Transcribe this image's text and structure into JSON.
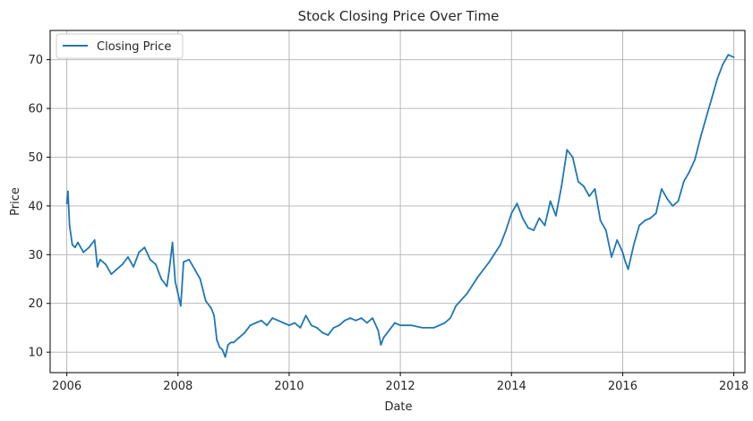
{
  "chart_data": {
    "type": "line",
    "title": "Stock Closing Price Over Time",
    "xlabel": "Date",
    "ylabel": "Price",
    "xlim": [
      2005.7,
      2018.2
    ],
    "ylim": [
      5.8,
      76.0
    ],
    "grid": true,
    "legend_position": "top-left",
    "x_ticks": [
      2006,
      2008,
      2010,
      2012,
      2014,
      2016,
      2018
    ],
    "x_tick_labels": [
      "2006",
      "2008",
      "2010",
      "2012",
      "2014",
      "2016",
      "2018"
    ],
    "y_ticks": [
      10,
      20,
      30,
      40,
      50,
      60,
      70
    ],
    "y_tick_labels": [
      "10",
      "20",
      "30",
      "40",
      "50",
      "60",
      "70"
    ],
    "series": [
      {
        "name": "Closing Price",
        "color": "#1f77b4",
        "x": [
          2006.0,
          2006.02,
          2006.05,
          2006.08,
          2006.1,
          2006.15,
          2006.2,
          2006.3,
          2006.4,
          2006.5,
          2006.55,
          2006.6,
          2006.7,
          2006.8,
          2006.9,
          2007.0,
          2007.1,
          2007.2,
          2007.3,
          2007.4,
          2007.5,
          2007.6,
          2007.7,
          2007.8,
          2007.85,
          2007.9,
          2007.95,
          2008.0,
          2008.05,
          2008.1,
          2008.2,
          2008.3,
          2008.4,
          2008.5,
          2008.6,
          2008.65,
          2008.7,
          2008.75,
          2008.8,
          2008.85,
          2008.9,
          2008.95,
          2009.0,
          2009.1,
          2009.2,
          2009.3,
          2009.4,
          2009.5,
          2009.6,
          2009.7,
          2009.8,
          2009.9,
          2010.0,
          2010.1,
          2010.2,
          2010.3,
          2010.4,
          2010.5,
          2010.6,
          2010.7,
          2010.8,
          2010.9,
          2011.0,
          2011.1,
          2011.2,
          2011.3,
          2011.4,
          2011.5,
          2011.6,
          2011.65,
          2011.7,
          2011.8,
          2011.9,
          2012.0,
          2012.2,
          2012.4,
          2012.6,
          2012.8,
          2012.9,
          2013.0,
          2013.2,
          2013.4,
          2013.6,
          2013.8,
          2013.9,
          2014.0,
          2014.1,
          2014.2,
          2014.3,
          2014.4,
          2014.5,
          2014.6,
          2014.7,
          2014.8,
          2014.9,
          2015.0,
          2015.1,
          2015.2,
          2015.3,
          2015.4,
          2015.5,
          2015.6,
          2015.7,
          2015.8,
          2015.9,
          2016.0,
          2016.05,
          2016.1,
          2016.2,
          2016.3,
          2016.4,
          2016.5,
          2016.6,
          2016.7,
          2016.8,
          2016.9,
          2017.0,
          2017.1,
          2017.2,
          2017.3,
          2017.4,
          2017.5,
          2017.6,
          2017.7,
          2017.8,
          2017.9,
          2018.0
        ],
        "y": [
          40.5,
          43.0,
          36.0,
          33.5,
          32.0,
          31.5,
          32.5,
          30.5,
          31.5,
          33.0,
          27.5,
          29.0,
          28.0,
          26.0,
          27.0,
          28.0,
          29.5,
          27.5,
          30.5,
          31.5,
          29.0,
          28.0,
          25.0,
          23.5,
          27.5,
          32.5,
          24.5,
          22.0,
          19.5,
          28.5,
          29.0,
          27.0,
          25.0,
          20.5,
          19.0,
          17.5,
          12.5,
          11.0,
          10.5,
          9.0,
          11.5,
          12.0,
          12.0,
          13.0,
          14.0,
          15.5,
          16.0,
          16.5,
          15.5,
          17.0,
          16.5,
          16.0,
          15.5,
          16.0,
          15.0,
          17.5,
          15.5,
          15.0,
          14.0,
          13.5,
          15.0,
          15.5,
          16.5,
          17.0,
          16.5,
          17.0,
          16.0,
          17.0,
          14.5,
          11.5,
          13.0,
          14.5,
          16.0,
          15.5,
          15.5,
          15.0,
          15.0,
          16.0,
          17.0,
          19.5,
          22.0,
          25.5,
          28.5,
          32.0,
          35.0,
          38.5,
          40.5,
          37.5,
          35.5,
          35.0,
          37.5,
          36.0,
          41.0,
          38.0,
          44.0,
          51.5,
          50.0,
          45.0,
          44.0,
          42.0,
          43.5,
          37.0,
          35.0,
          29.5,
          33.0,
          30.5,
          28.5,
          27.0,
          32.0,
          36.0,
          37.0,
          37.5,
          38.5,
          43.5,
          41.5,
          40.0,
          41.0,
          45.0,
          47.0,
          49.5,
          54.0,
          58.0,
          62.0,
          66.0,
          69.0,
          71.0,
          70.5
        ]
      }
    ]
  }
}
